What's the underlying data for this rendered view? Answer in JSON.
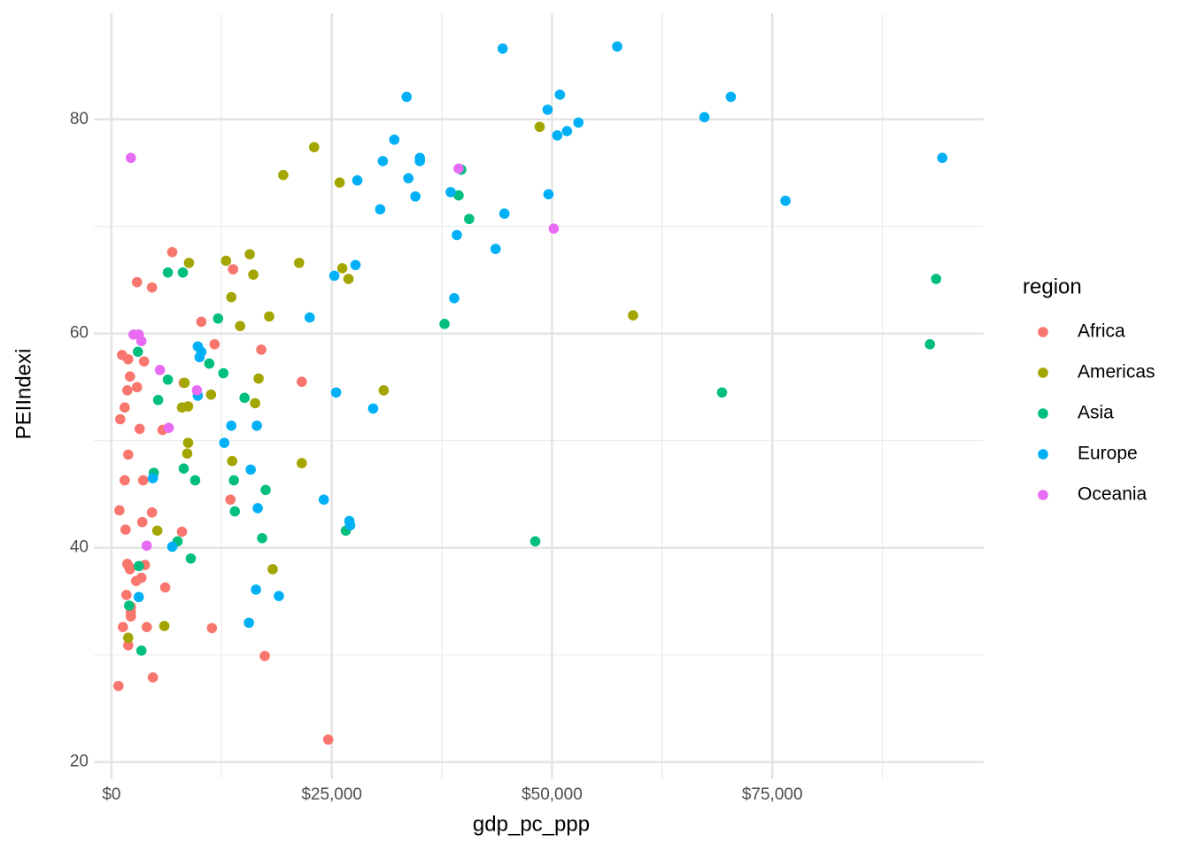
{
  "chart_data": {
    "type": "scatter",
    "x_label": "gdp_pc_ppp",
    "y_label": "PEIIndexi",
    "legend_title": "region",
    "legend_position": "right",
    "grid": true,
    "xlim": [
      -2000,
      99000
    ],
    "ylim": [
      18.4,
      89.9
    ],
    "xticks": [
      {
        "value": 0,
        "label": "$0"
      },
      {
        "value": 25000,
        "label": "$25,000"
      },
      {
        "value": 50000,
        "label": "$50,000"
      },
      {
        "value": 75000,
        "label": "$75,000"
      }
    ],
    "yticks": [
      20,
      40,
      60,
      80
    ],
    "xminor": [
      12500,
      37500,
      62500,
      87500
    ],
    "yminor": [
      30,
      50,
      70
    ],
    "series": [
      {
        "name": "Africa",
        "color": "#F8766D",
        "x": [
          6900,
          13800,
          2900,
          4600,
          10200,
          11700,
          17000,
          1200,
          1900,
          3700,
          2100,
          2900,
          1800,
          21600,
          1500,
          1000,
          3200,
          5800,
          1900,
          1500,
          3600,
          900,
          4600,
          1600,
          3500,
          8000,
          13500,
          1800,
          2000,
          3800,
          2100,
          3400,
          2800,
          6100,
          1700,
          2200,
          2200,
          2200,
          1300,
          4000,
          11400,
          1900,
          17400,
          800,
          4700,
          24600,
          8200
        ],
        "values": [
          67.6,
          66.0,
          64.8,
          64.3,
          61.1,
          59.0,
          58.5,
          58.0,
          57.6,
          57.4,
          56.0,
          55.0,
          54.7,
          55.5,
          53.1,
          52.0,
          51.1,
          51.0,
          48.7,
          46.3,
          46.3,
          43.5,
          43.3,
          41.7,
          42.4,
          41.5,
          44.5,
          38.5,
          38.2,
          38.4,
          38.0,
          37.2,
          36.9,
          36.3,
          35.6,
          34.5,
          34.0,
          33.6,
          32.6,
          32.6,
          32.5,
          30.9,
          29.9,
          27.1,
          27.9,
          22.1,
          55.4
        ]
      },
      {
        "name": "Americas",
        "color": "#A3A500",
        "x": [
          23000,
          19500,
          25900,
          48600,
          59200,
          13000,
          15700,
          8800,
          21300,
          26200,
          26900,
          16100,
          13600,
          17900,
          14600,
          8300,
          16700,
          11300,
          16300,
          8000,
          8700,
          30900,
          8700,
          8600,
          13700,
          21600,
          5200,
          18300,
          6000,
          1900
        ],
        "values": [
          77.4,
          74.8,
          74.1,
          79.3,
          61.7,
          66.8,
          67.4,
          66.6,
          66.6,
          66.1,
          65.1,
          65.5,
          63.4,
          61.6,
          60.7,
          55.4,
          55.8,
          54.3,
          53.5,
          53.1,
          53.2,
          54.7,
          49.8,
          48.8,
          48.1,
          47.9,
          41.6,
          38.0,
          32.7,
          31.6
        ]
      },
      {
        "name": "Asia",
        "color": "#00BF7D",
        "x": [
          39700,
          39400,
          40600,
          93600,
          92900,
          69300,
          37800,
          48100,
          6400,
          8100,
          12100,
          3000,
          11100,
          12700,
          6400,
          5300,
          15100,
          4800,
          8200,
          9500,
          13900,
          17500,
          14000,
          7500,
          17100,
          26600,
          9000,
          3100,
          2000,
          3400
        ],
        "values": [
          75.3,
          72.9,
          70.7,
          65.1,
          59.0,
          54.5,
          60.9,
          40.6,
          65.7,
          65.7,
          61.4,
          58.3,
          57.2,
          56.3,
          55.7,
          53.8,
          54.0,
          47.0,
          47.4,
          46.3,
          46.3,
          45.4,
          43.4,
          40.6,
          40.9,
          41.6,
          39.0,
          38.3,
          34.6,
          30.4
        ]
      },
      {
        "name": "Europe",
        "color": "#00B0F6",
        "x": [
          44400,
          57400,
          33500,
          50900,
          70300,
          49500,
          53000,
          51700,
          50600,
          67300,
          32100,
          35000,
          35000,
          30800,
          94300,
          27900,
          33700,
          38500,
          34500,
          49600,
          76500,
          30500,
          44600,
          39200,
          43600,
          27700,
          25300,
          38900,
          22500,
          9800,
          10200,
          10000,
          25500,
          9800,
          29700,
          13600,
          16500,
          12800,
          15800,
          4700,
          24100,
          16600,
          27000,
          27100,
          6900,
          3100,
          16400,
          19000,
          15600
        ],
        "values": [
          86.6,
          86.8,
          82.1,
          82.3,
          82.1,
          80.9,
          79.7,
          78.9,
          78.5,
          80.2,
          78.1,
          76.4,
          76.1,
          76.1,
          76.4,
          74.3,
          74.5,
          73.2,
          72.8,
          73.0,
          72.4,
          71.6,
          71.2,
          69.2,
          67.9,
          66.4,
          65.4,
          63.3,
          61.5,
          58.8,
          58.3,
          57.8,
          54.5,
          54.2,
          53.0,
          51.4,
          51.4,
          49.8,
          47.3,
          46.5,
          44.5,
          43.7,
          42.5,
          42.1,
          40.1,
          35.4,
          36.1,
          35.5,
          33.0
        ]
      },
      {
        "name": "Oceania",
        "color": "#E76BF3",
        "x": [
          2200,
          39400,
          50200,
          2500,
          3100,
          3400,
          5500,
          9700,
          6500,
          4000
        ],
        "values": [
          76.4,
          75.4,
          69.8,
          59.9,
          59.9,
          59.3,
          56.6,
          54.7,
          51.2,
          40.2
        ]
      }
    ]
  }
}
